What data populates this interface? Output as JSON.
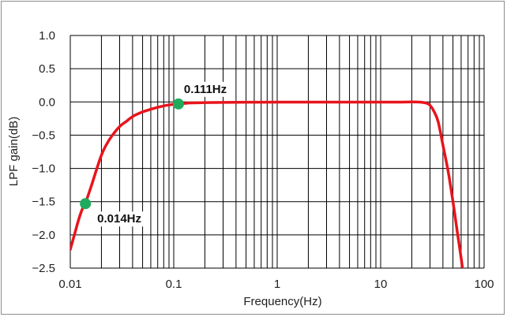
{
  "chart_data": {
    "type": "line",
    "title": "",
    "xlabel": "Frequency(Hz)",
    "ylabel": "LPF gain(dB)",
    "xscale": "log",
    "xlim": [
      0.01,
      100
    ],
    "ylim": [
      -2.5,
      1.0
    ],
    "grid": true,
    "x_ticks": [
      0.01,
      0.1,
      1,
      10,
      100
    ],
    "x_tick_labels": [
      "0.01",
      "0.1",
      "1",
      "10",
      "100"
    ],
    "y_ticks": [
      1.0,
      0.5,
      0.0,
      -0.5,
      -1.0,
      -1.5,
      -2.0,
      -2.5
    ],
    "y_tick_labels": [
      "1.0",
      "0.5",
      "0.0",
      "−0.5",
      "−1.0",
      "−1.5",
      "−2.0",
      "−2.5"
    ],
    "series": [
      {
        "color": "#e8141c",
        "x": [
          0.01,
          0.011,
          0.012,
          0.013,
          0.014,
          0.016,
          0.018,
          0.02,
          0.022,
          0.025,
          0.03,
          0.035,
          0.04,
          0.05,
          0.06,
          0.07,
          0.08,
          0.09,
          0.1,
          0.111,
          0.13,
          0.15,
          0.2,
          0.3,
          0.5,
          1,
          2,
          5,
          10,
          15,
          20,
          25,
          28,
          30,
          33,
          36,
          40,
          45,
          50,
          55,
          60,
          63
        ],
        "y": [
          -2.22,
          -1.99,
          -1.78,
          -1.62,
          -1.52,
          -1.26,
          -1.01,
          -0.8,
          -0.66,
          -0.52,
          -0.37,
          -0.29,
          -0.22,
          -0.15,
          -0.11,
          -0.08,
          -0.06,
          -0.045,
          -0.035,
          -0.03,
          -0.02,
          -0.015,
          -0.01,
          -0.007,
          -0.004,
          -0.003,
          -0.002,
          -0.002,
          -0.003,
          -0.003,
          0.0,
          -0.005,
          -0.02,
          -0.05,
          -0.15,
          -0.3,
          -0.65,
          -1.05,
          -1.5,
          -1.95,
          -2.35,
          -2.6
        ]
      }
    ],
    "markers": [
      {
        "x": 0.014,
        "y": -1.53,
        "label": "0.014Hz",
        "color": "#1eab5c"
      },
      {
        "x": 0.111,
        "y": -0.03,
        "label": "0.111Hz",
        "color": "#1eab5c"
      }
    ]
  }
}
